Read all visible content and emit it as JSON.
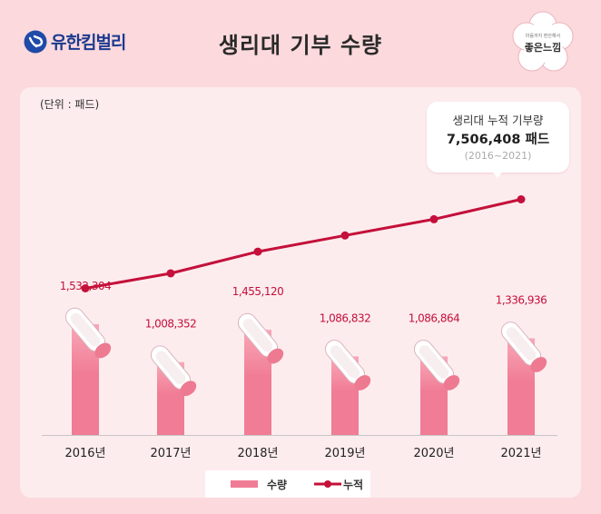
{
  "brand": {
    "name": "유한킴벌리"
  },
  "page_title": "생리대 기부 수량",
  "badge": {
    "name": "좋은느낌",
    "tagline": "마음까지 편안해서"
  },
  "unit_label": "(단위 : 패드)",
  "callout": {
    "title": "생리대 누적 기부량",
    "value": "7,506,408 패드",
    "years": "(2016~2021)"
  },
  "legend": {
    "bar": "수량",
    "line": "누적"
  },
  "colors": {
    "bar": "#f07c95",
    "bar_top": "#f9a7b7",
    "line": "#c4103a",
    "panel": "#fdecee",
    "background": "#fbd9dc"
  },
  "chart_data": {
    "type": "bar",
    "categories": [
      "2016년",
      "2017년",
      "2018년",
      "2019년",
      "2020년",
      "2021년"
    ],
    "series": [
      {
        "name": "수량",
        "type": "bar",
        "values": [
          1532304,
          1008352,
          1455120,
          1086832,
          1086864,
          1336936
        ],
        "labels": [
          "1,532,304",
          "1,008,352",
          "1,455,120",
          "1,086,832",
          "1,086,864",
          "1,336,936"
        ]
      },
      {
        "name": "누적",
        "type": "line",
        "values": [
          1532304,
          2540656,
          3995776,
          5082608,
          6169472,
          7506408
        ]
      }
    ],
    "grid": false,
    "legend_position": "bottom"
  }
}
